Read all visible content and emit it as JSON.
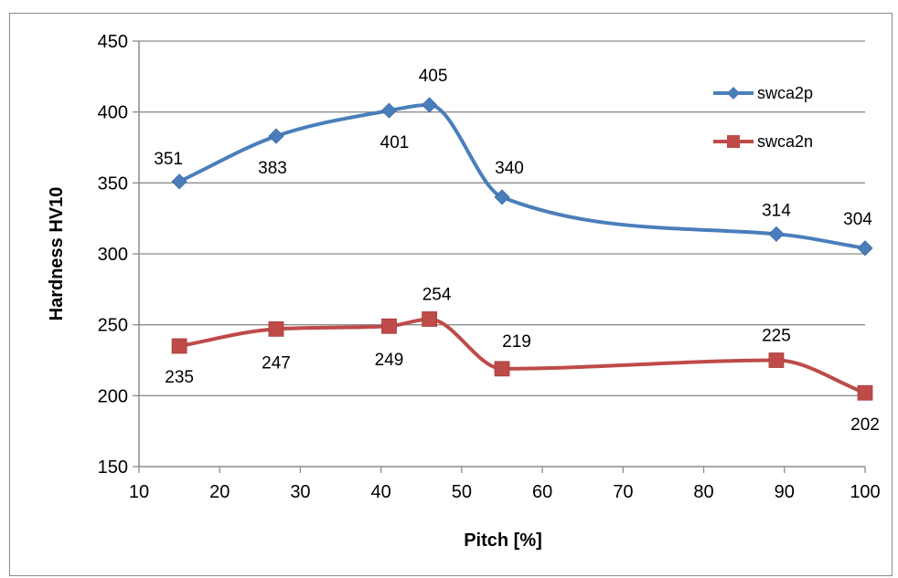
{
  "chart_data": {
    "type": "line",
    "title": "",
    "xlabel": "Pitch [%]",
    "ylabel": "Hardness HV10",
    "xlim": [
      10,
      100
    ],
    "ylim": [
      150,
      450
    ],
    "xticks": [
      10,
      20,
      30,
      40,
      50,
      60,
      70,
      80,
      90,
      100
    ],
    "yticks": [
      150,
      200,
      250,
      300,
      350,
      400,
      450
    ],
    "grid": "horizontal",
    "smooth": true,
    "legend_position": "top-right",
    "series": [
      {
        "name": "swca2p",
        "color": "#4a7ebb",
        "marker": "diamond",
        "x": [
          15,
          27,
          41,
          46,
          55,
          89,
          100
        ],
        "y": [
          351,
          383,
          401,
          405,
          340,
          314,
          304
        ],
        "labels": [
          "351",
          "383",
          "401",
          "405",
          "340",
          "314",
          "304"
        ]
      },
      {
        "name": "swca2n",
        "color": "#be4b48",
        "marker": "square",
        "x": [
          15,
          27,
          41,
          46,
          55,
          89,
          100
        ],
        "y": [
          235,
          247,
          249,
          254,
          219,
          225,
          202
        ],
        "labels": [
          "235",
          "247",
          "249",
          "254",
          "219",
          "225",
          "202"
        ]
      }
    ]
  }
}
